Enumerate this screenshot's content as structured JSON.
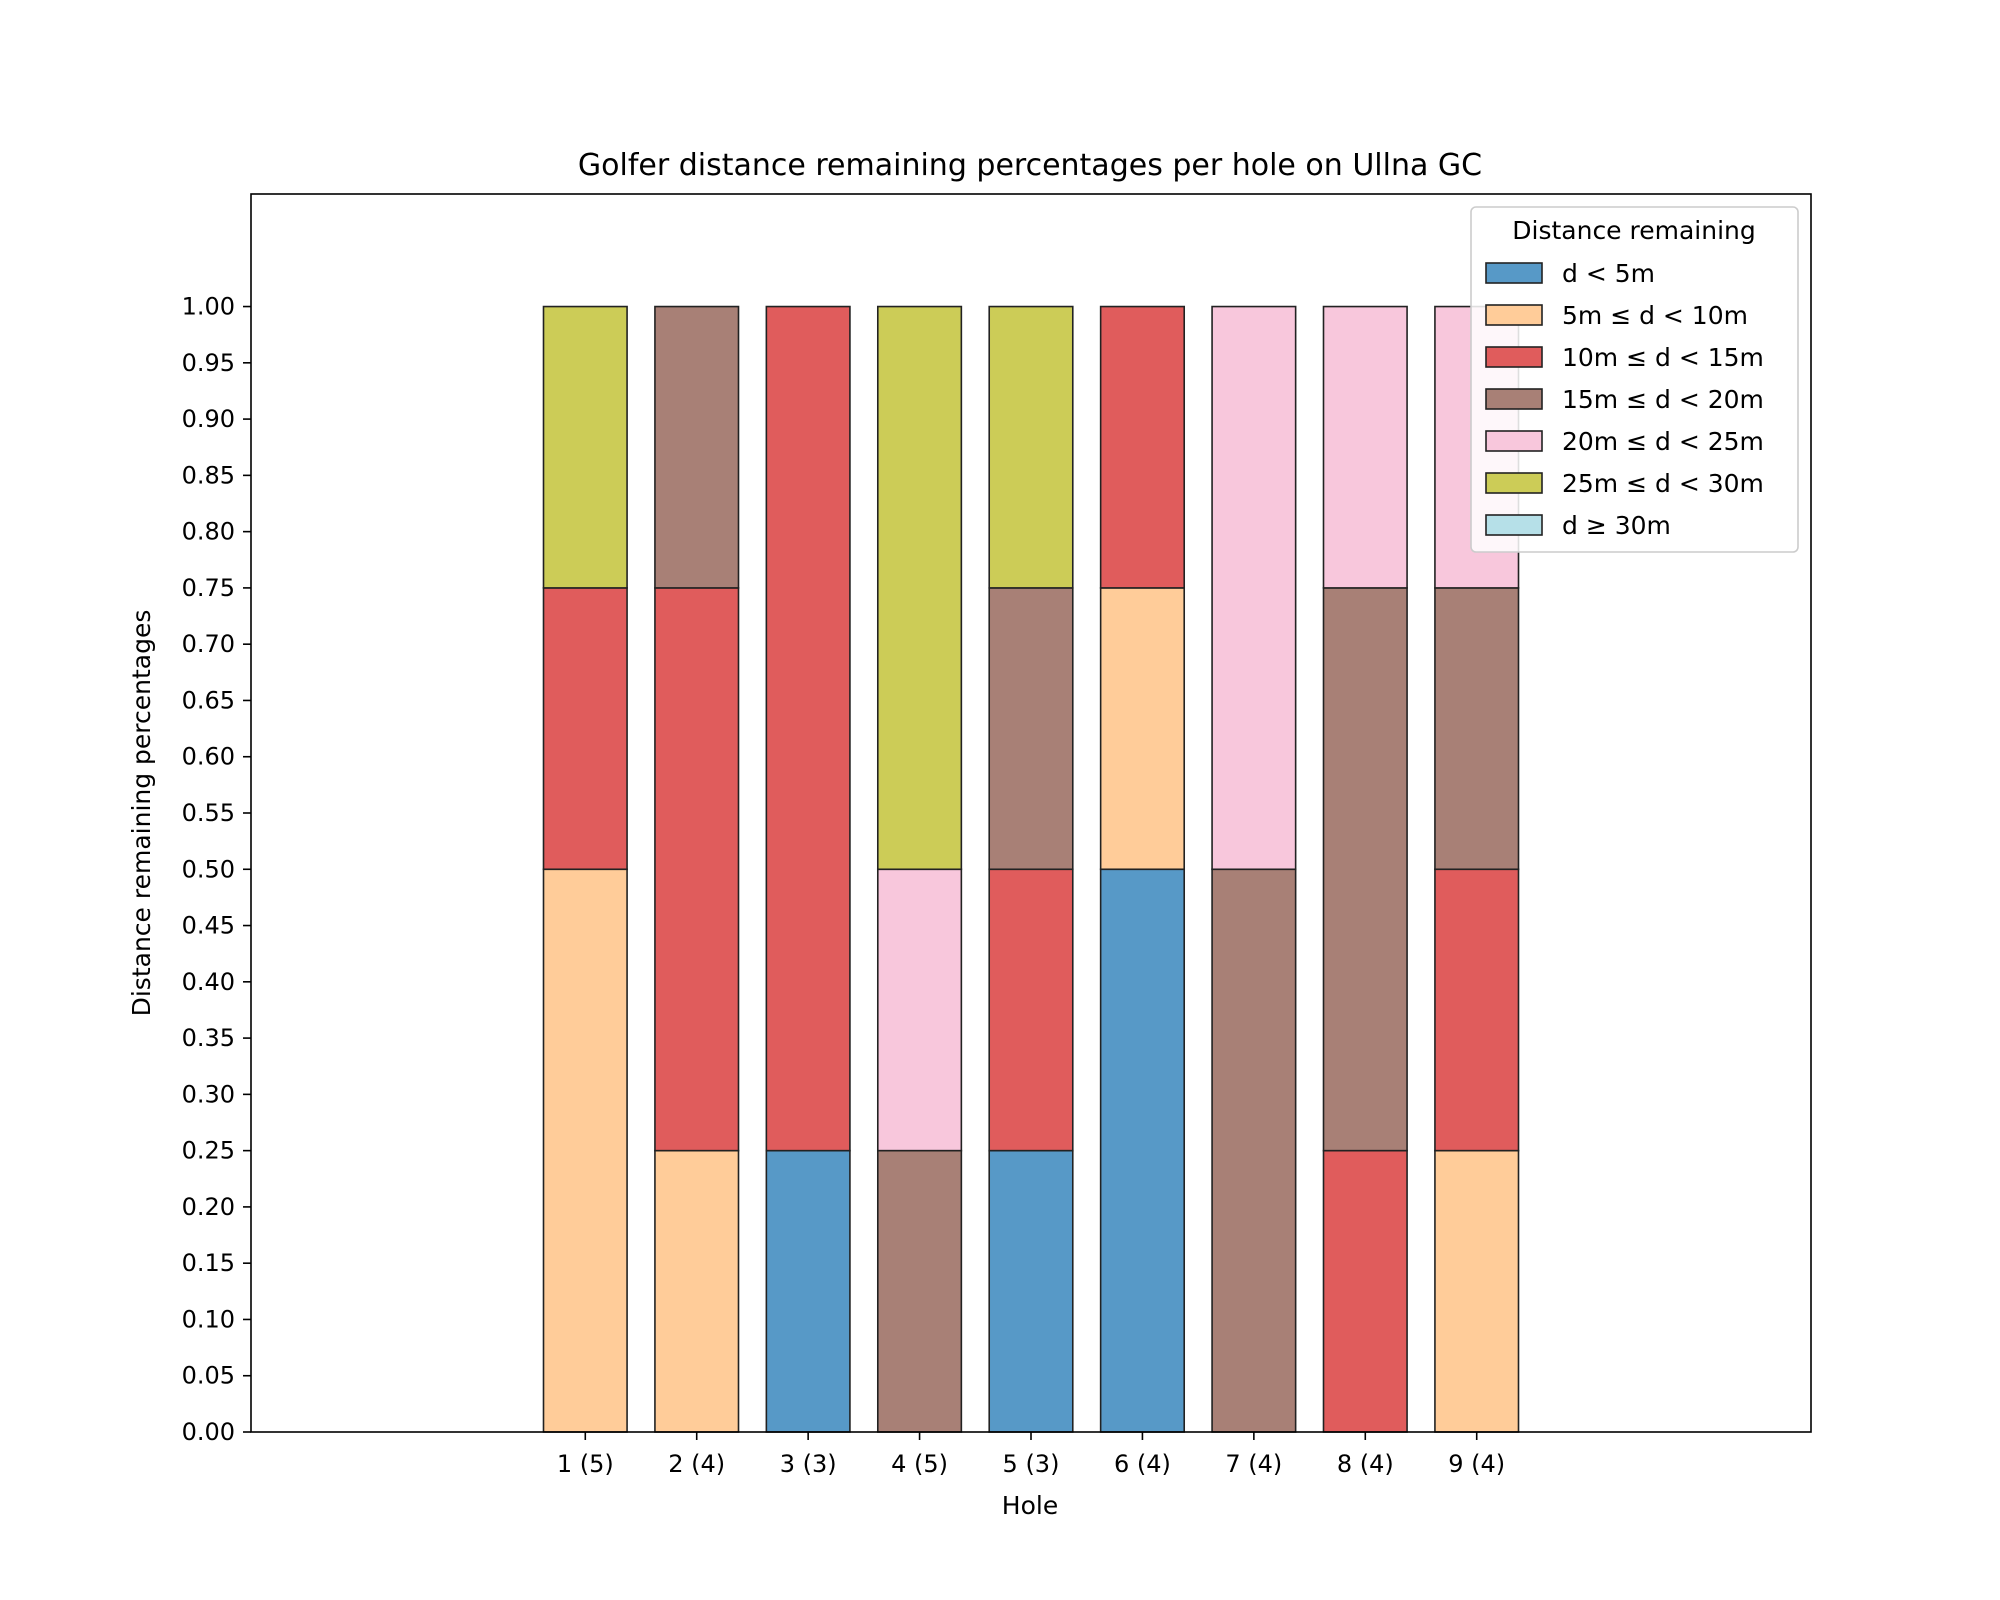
{
  "chart_data": {
    "type": "bar",
    "stacked": true,
    "title": "Golfer distance remaining percentages per hole on Ullna GC",
    "xlabel": "Hole",
    "ylabel": "Distance remaining percentages",
    "categories": [
      "1 (5)",
      "2 (4)",
      "3 (3)",
      "4 (5)",
      "5 (3)",
      "6 (4)",
      "7 (4)",
      "8 (4)",
      "9 (4)"
    ],
    "ylim": [
      0,
      1.1
    ],
    "yticks": [
      "0.00",
      "0.05",
      "0.10",
      "0.15",
      "0.20",
      "0.25",
      "0.30",
      "0.35",
      "0.40",
      "0.45",
      "0.50",
      "0.55",
      "0.60",
      "0.65",
      "0.70",
      "0.75",
      "0.80",
      "0.85",
      "0.90",
      "0.95",
      "1.00"
    ],
    "grid": false,
    "legend": {
      "title": "Distance remaining",
      "position": "top-right"
    },
    "series": [
      {
        "name": "d < 5m",
        "color": "#5799c7",
        "values": [
          0,
          0,
          0.25,
          0,
          0.25,
          0.5,
          0,
          0,
          0
        ]
      },
      {
        "name": "5m ≤ d < 10m",
        "color": "#ffcc99",
        "values": [
          0.5,
          0.25,
          0,
          0,
          0,
          0.25,
          0,
          0,
          0.25
        ]
      },
      {
        "name": "10m ≤ d < 15m",
        "color": "#e05c5c",
        "values": [
          0.25,
          0.5,
          0.75,
          0,
          0.25,
          0.25,
          0,
          0.25,
          0.25
        ]
      },
      {
        "name": "15m ≤ d < 20m",
        "color": "#a88076",
        "values": [
          0,
          0.25,
          0,
          0.25,
          0.25,
          0,
          0.5,
          0.5,
          0.25
        ]
      },
      {
        "name": "20m ≤ d < 25m",
        "color": "#f8c7dc",
        "values": [
          0,
          0,
          0,
          0.25,
          0,
          0,
          0.5,
          0.25,
          0.25
        ]
      },
      {
        "name": "25m ≤ d < 30m",
        "color": "#cccc57",
        "values": [
          0.25,
          0,
          0,
          0.5,
          0.25,
          0,
          0,
          0,
          0
        ]
      },
      {
        "name": "d ≥ 30m",
        "color": "#b6e0e8",
        "values": [
          0,
          0,
          0,
          0,
          0,
          0,
          0,
          0,
          0
        ]
      }
    ]
  }
}
